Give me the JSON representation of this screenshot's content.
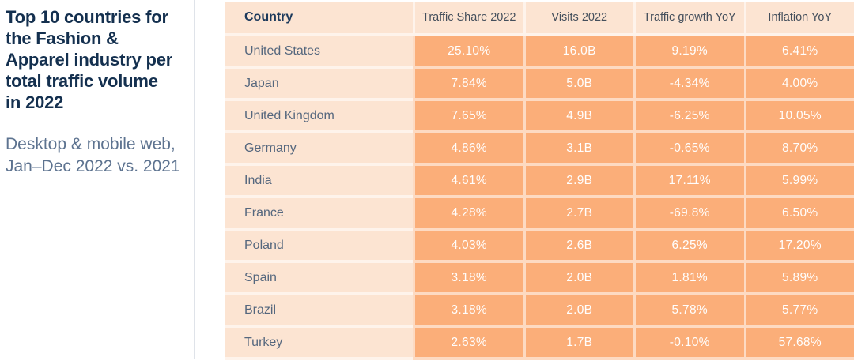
{
  "panel": {
    "title": "Top 10 countries for the Fashion & Apparel industry per total traffic volume in 2022",
    "subtitle": "Desktop & mobile web, Jan–Dec 2022 vs. 2021"
  },
  "chart_data": {
    "type": "table",
    "title": "Top 10 countries for the Fashion & Apparel industry per total traffic volume in 2022",
    "subtitle": "Desktop & mobile web, Jan–Dec 2022 vs. 2021",
    "columns": [
      "Country",
      "Traffic Share 2022",
      "Visits 2022",
      "Traffic growth YoY",
      "Inflation YoY"
    ],
    "rows": [
      [
        "United States",
        "25.10%",
        "16.0B",
        "9.19%",
        "6.41%"
      ],
      [
        "Japan",
        "7.84%",
        "5.0B",
        "-4.34%",
        "4.00%"
      ],
      [
        "United Kingdom",
        "7.65%",
        "4.9B",
        "-6.25%",
        "10.05%"
      ],
      [
        "Germany",
        "4.86%",
        "3.1B",
        "-0.65%",
        "8.70%"
      ],
      [
        "India",
        "4.61%",
        "2.9B",
        "17.11%",
        "5.99%"
      ],
      [
        "France",
        "4.28%",
        "2.7B",
        "-69.8%",
        "6.50%"
      ],
      [
        "Poland",
        "4.03%",
        "2.6B",
        "6.25%",
        "17.20%"
      ],
      [
        "Spain",
        "3.18%",
        "2.0B",
        "1.81%",
        "5.89%"
      ],
      [
        "Brazil",
        "3.18%",
        "2.0B",
        "5.78%",
        "5.77%"
      ],
      [
        "Turkey",
        "2.63%",
        "1.7B",
        "-0.10%",
        "57.68%"
      ]
    ]
  },
  "colors": {
    "header_bg": "#fce4d2",
    "country_cell_bg": "#fce4d2",
    "value_cell_bg": "#fbae79",
    "row_separator": "rgba(255,255,255,0.55)",
    "title_text": "#14304f",
    "subtitle_text": "#5d7390",
    "country_text": "#55677e",
    "header_text": "#444f5c",
    "value_text": "#ffffff",
    "divider": "#dfe3e9"
  }
}
